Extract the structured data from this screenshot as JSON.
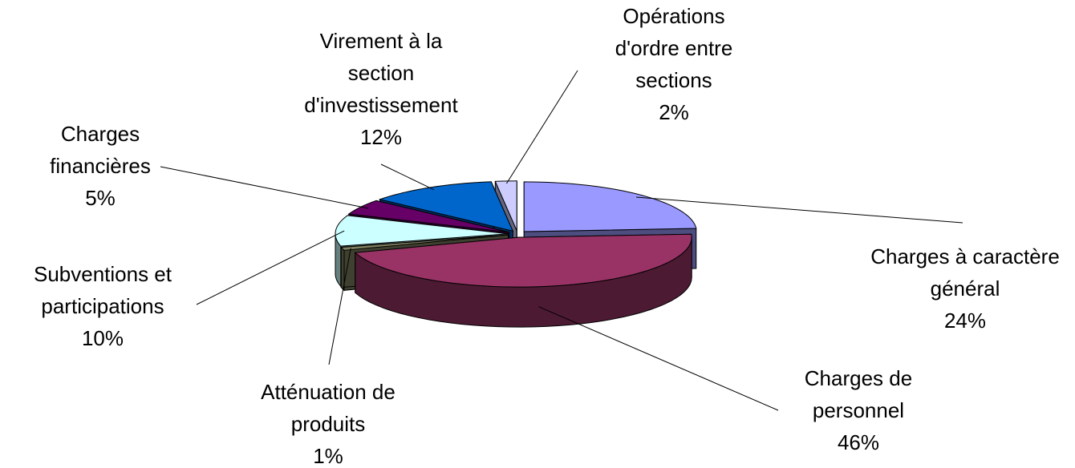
{
  "chart_data": {
    "type": "pie3d",
    "categories": [
      "Charges à caractère général",
      "Charges de personnel",
      "Atténuation de produits",
      "Subventions et participations",
      "Charges financières",
      "Virement à la section d'investissement",
      "Opérations d'ordre entre sections"
    ],
    "values": [
      24,
      46,
      1,
      10,
      5,
      12,
      2
    ],
    "value_labels": [
      "24%",
      "46%",
      "1%",
      "10%",
      "5%",
      "12%",
      "2%"
    ],
    "colors": [
      "#9999ff",
      "#993366",
      "#808060",
      "#ccffff",
      "#660066",
      "#0066cc",
      "#ccccff"
    ]
  }
}
